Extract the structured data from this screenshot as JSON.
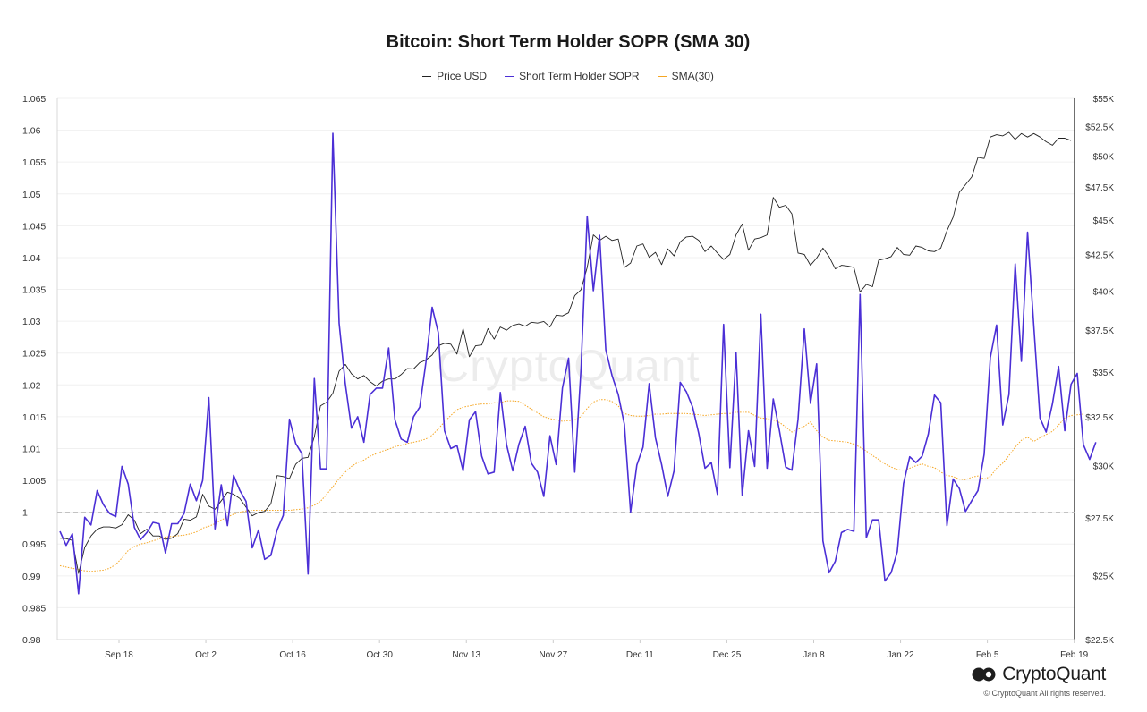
{
  "title": "Bitcoin: Short Term Holder SOPR (SMA 30)",
  "legend": [
    {
      "label": "Price USD",
      "color": "#222222"
    },
    {
      "label": "Short Term Holder SOPR",
      "color": "#4b2fd6"
    },
    {
      "label": "SMA(30)",
      "color": "#f5a623"
    }
  ],
  "brand": {
    "name": "CryptoQuant",
    "copyright": "© CryptoQuant All rights reserved.",
    "watermark": "CryptoQuant"
  },
  "chart_data": {
    "type": "line",
    "y_left": {
      "ylim": [
        0.98,
        1.065
      ],
      "ticks": [
        "0.98",
        "0.985",
        "0.99",
        "0.995",
        "1",
        "1.005",
        "1.01",
        "1.015",
        "1.02",
        "1.025",
        "1.03",
        "1.035",
        "1.04",
        "1.045",
        "1.05",
        "1.055",
        "1.06",
        "1.065"
      ]
    },
    "y_right": {
      "scale": "log",
      "ylim": [
        22500,
        55000
      ],
      "ticks": [
        "$22.5K",
        "$25K",
        "$27.5K",
        "$30K",
        "$32.5K",
        "$35K",
        "$37.5K",
        "$40K",
        "$42.5K",
        "$45K",
        "$47.5K",
        "$50K",
        "$52.5K",
        "$55K"
      ]
    },
    "x_ticks": [
      "Sep 18",
      "Oct 2",
      "Oct 16",
      "Oct 30",
      "Nov 13",
      "Nov 27",
      "Dec 11",
      "Dec 25",
      "Jan 8",
      "Jan 22",
      "Feb 5",
      "Feb 19"
    ],
    "reference_line": 1,
    "series": [
      {
        "name": "Price USD",
        "axis": "right",
        "color": "#222222",
        "values": [
          26600,
          26580,
          26500,
          25100,
          26200,
          26700,
          27000,
          27100,
          27100,
          27050,
          27200,
          27650,
          27400,
          26800,
          27000,
          26700,
          26700,
          26550,
          26600,
          26800,
          27450,
          27400,
          27550,
          28600,
          28050,
          27900,
          28300,
          28700,
          28600,
          28400,
          28000,
          27600,
          27750,
          27800,
          28150,
          29500,
          29450,
          29350,
          30050,
          30350,
          30400,
          31450,
          33100,
          33300,
          33800,
          35050,
          35450,
          34900,
          34600,
          34800,
          34450,
          34200,
          34480,
          34600,
          34600,
          34850,
          35200,
          35180,
          35550,
          35700,
          36000,
          36550,
          36700,
          36650,
          36050,
          37600,
          35900,
          36550,
          36600,
          37600,
          36950,
          37700,
          37500,
          37800,
          37900,
          37750,
          38000,
          37950,
          38050,
          37700,
          38450,
          38400,
          38600,
          39700,
          40100,
          41600,
          43900,
          43500,
          43800,
          43500,
          43600,
          41600,
          41900,
          43100,
          43250,
          42300,
          42650,
          41800,
          42900,
          42400,
          43400,
          43750,
          43800,
          43500,
          42700,
          43100,
          42600,
          42150,
          42500,
          43900,
          44700,
          42800,
          43600,
          43700,
          43900,
          46700,
          45950,
          46100,
          45450,
          42600,
          42500,
          41750,
          42250,
          42950,
          42350,
          41500,
          41750,
          41700,
          41600,
          39950,
          40450,
          40300,
          42100,
          42200,
          42350,
          43000,
          42500,
          42450,
          43100,
          43000,
          42750,
          42700,
          42950,
          44200,
          45200,
          47100,
          47700,
          48300,
          49900,
          49800,
          51600,
          51800,
          51700,
          52000,
          51400,
          51900,
          51600,
          51900,
          51600,
          51200,
          50900,
          51500,
          51500,
          51300
        ]
      },
      {
        "name": "Short Term Holder SOPR",
        "axis": "left",
        "color": "#4b2fd6",
        "values": [
          0.997,
          0.9948,
          0.9966,
          0.9872,
          0.9992,
          0.998,
          1.0034,
          1.0012,
          0.9998,
          0.9993,
          1.0072,
          1.0044,
          0.9976,
          0.9957,
          0.9968,
          0.9984,
          0.9982,
          0.9936,
          0.9982,
          0.9982,
          0.9998,
          1.0044,
          1.0018,
          1.005,
          1.018,
          0.9974,
          1.0043,
          0.9979,
          1.0058,
          1.0034,
          1.0017,
          0.9944,
          0.9972,
          0.9926,
          0.9932,
          0.9972,
          0.9995,
          1.0146,
          1.0108,
          1.0092,
          0.9903,
          1.021,
          1.0068,
          1.0068,
          1.0595,
          1.0297,
          1.0202,
          1.0132,
          1.015,
          1.011,
          1.0185,
          1.0195,
          1.0195,
          1.0258,
          1.0145,
          1.0115,
          1.011,
          1.015,
          1.0165,
          1.0235,
          1.0322,
          1.0282,
          1.0128,
          1.01,
          1.0105,
          1.0065,
          1.0145,
          1.0158,
          1.0088,
          1.006,
          1.0063,
          1.0188,
          1.0106,
          1.0065,
          1.0107,
          1.0135,
          1.0077,
          1.0063,
          1.0025,
          1.012,
          1.0075,
          1.0195,
          1.0242,
          1.0063,
          1.0225,
          1.0465,
          1.0348,
          1.0435,
          1.0255,
          1.0215,
          1.0185,
          1.0138,
          1.0,
          1.0074,
          1.0102,
          1.0202,
          1.0117,
          1.0075,
          1.0025,
          1.0065,
          1.0204,
          1.0189,
          1.0165,
          1.0123,
          1.0069,
          1.0078,
          1.0028,
          1.0295,
          1.007,
          1.0251,
          1.0026,
          1.0128,
          1.0072,
          1.0311,
          1.0069,
          1.0178,
          1.0128,
          1.0071,
          1.0066,
          1.0146,
          1.0288,
          1.0171,
          1.0233,
          0.9955,
          0.9905,
          0.9923,
          0.9968,
          0.9973,
          0.997,
          1.0342,
          0.996,
          0.9988,
          0.9988,
          0.9892,
          0.9905,
          0.9938,
          1.0045,
          1.0087,
          1.0078,
          1.0088,
          1.0123,
          1.0184,
          1.0172,
          0.9979,
          1.0052,
          1.0037,
          1.0001,
          1.0018,
          1.0034,
          1.0091,
          1.0243,
          1.0294,
          1.0137,
          1.0185,
          1.039,
          1.0237,
          1.044,
          1.0292,
          1.0148,
          1.0126,
          1.017,
          1.0229,
          1.0128,
          1.0201,
          1.0218,
          1.0106,
          1.0083,
          1.011
        ]
      },
      {
        "name": "SMA(30)",
        "axis": "left",
        "color": "#f5a623",
        "values": [
          0.9916,
          0.9914,
          0.9912,
          0.991,
          0.9908,
          0.9907,
          0.9908,
          0.9909,
          0.9912,
          0.9918,
          0.9928,
          0.994,
          0.9946,
          0.995,
          0.9952,
          0.9955,
          0.9958,
          0.9961,
          0.9962,
          0.9963,
          0.9964,
          0.9966,
          0.9969,
          0.9975,
          0.9978,
          0.9982,
          0.9988,
          0.9992,
          0.9997,
          1.0,
          1.0002,
          1.0003,
          1.0003,
          1.0003,
          1.0003,
          1.0003,
          1.0003,
          1.0003,
          1.0004,
          1.0005,
          1.0007,
          1.0011,
          1.0017,
          1.0028,
          1.004,
          1.0053,
          1.0063,
          1.0072,
          1.0078,
          1.0082,
          1.0088,
          1.0092,
          1.0096,
          1.0099,
          1.0103,
          1.0105,
          1.0108,
          1.011,
          1.0112,
          1.0115,
          1.0121,
          1.0131,
          1.0142,
          1.0152,
          1.0161,
          1.0165,
          1.0167,
          1.0169,
          1.017,
          1.017,
          1.0172,
          1.0172,
          1.0175,
          1.0175,
          1.0174,
          1.0168,
          1.0162,
          1.0156,
          1.015,
          1.0147,
          1.0145,
          1.0143,
          1.0144,
          1.0145,
          1.015,
          1.0163,
          1.0173,
          1.0177,
          1.0177,
          1.0174,
          1.0167,
          1.0155,
          1.0152,
          1.0151,
          1.0151,
          1.0152,
          1.0154,
          1.0154,
          1.0155,
          1.0155,
          1.0155,
          1.0155,
          1.0154,
          1.0153,
          1.0152,
          1.0153,
          1.0154,
          1.0155,
          1.0155,
          1.0157,
          1.0157,
          1.0157,
          1.0152,
          1.0148,
          1.0147,
          1.0145,
          1.0141,
          1.0134,
          1.0126,
          1.013,
          1.0135,
          1.0142,
          1.0128,
          1.0118,
          1.0113,
          1.0112,
          1.0111,
          1.011,
          1.0107,
          1.0102,
          1.0096,
          1.0089,
          1.0083,
          1.0076,
          1.0071,
          1.0067,
          1.0066,
          1.0069,
          1.0073,
          1.0076,
          1.0072,
          1.007,
          1.0063,
          1.0058,
          1.0056,
          1.0052,
          1.0051,
          1.0055,
          1.0057,
          1.0052,
          1.0056,
          1.0069,
          1.0077,
          1.0089,
          1.0102,
          1.0113,
          1.0118,
          1.0111,
          1.0117,
          1.0122,
          1.0127,
          1.0137,
          1.0148,
          1.0152,
          1.0153,
          1.0154
        ]
      }
    ]
  }
}
